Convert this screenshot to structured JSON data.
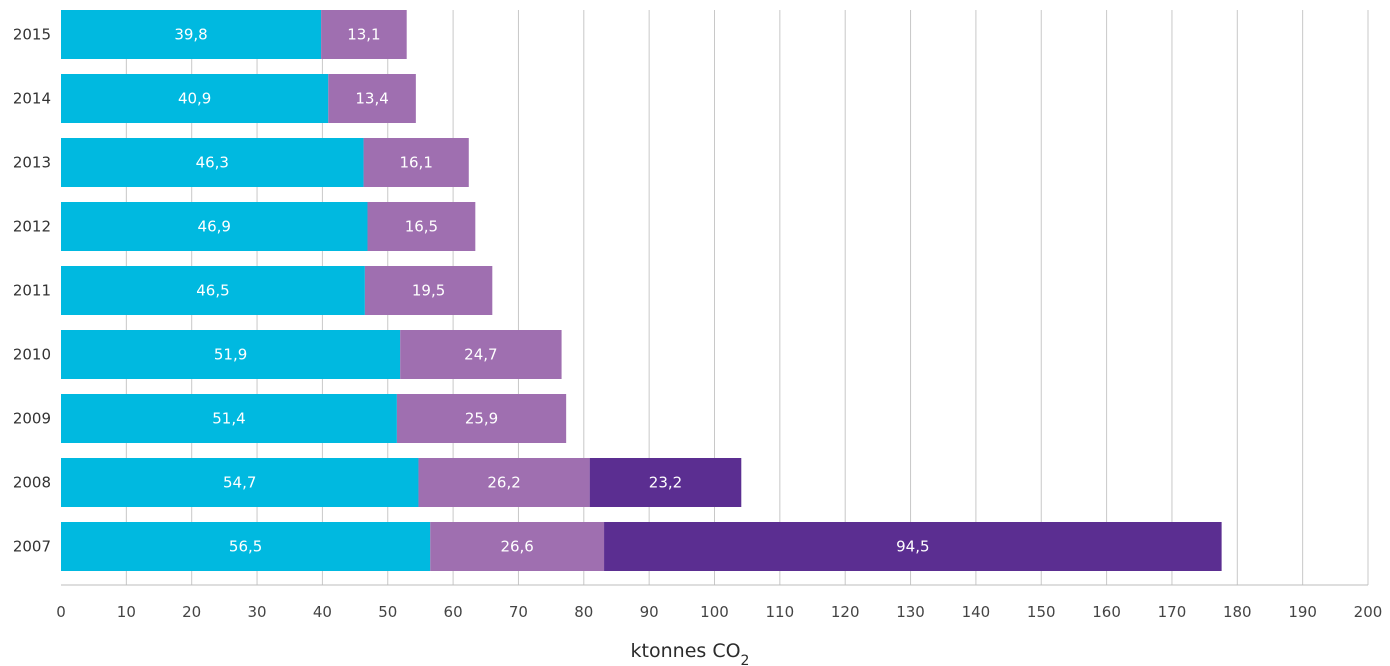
{
  "chart_data": {
    "type": "bar",
    "orientation": "horizontal",
    "stacked": true,
    "categories": [
      "2015",
      "2014",
      "2013",
      "2012",
      "2011",
      "2010",
      "2009",
      "2008",
      "2007"
    ],
    "series": [
      {
        "values": [
          39.8,
          40.9,
          46.3,
          46.9,
          46.5,
          51.9,
          51.4,
          54.7,
          56.5
        ],
        "labels": [
          "39,8",
          "40,9",
          "46,3",
          "46,9",
          "46,5",
          "51,9",
          "51,4",
          "54,7",
          "56,5"
        ],
        "color": "#00b9e0"
      },
      {
        "values": [
          13.1,
          13.4,
          16.1,
          16.5,
          19.5,
          24.7,
          25.9,
          26.2,
          26.6
        ],
        "labels": [
          "13,1",
          "13,4",
          "16,1",
          "16,5",
          "19,5",
          "24,7",
          "25,9",
          "26,2",
          "26,6"
        ],
        "color": "#9f6fb0"
      },
      {
        "values": [
          0,
          0,
          0,
          0,
          0,
          0,
          0,
          23.2,
          94.5
        ],
        "labels": [
          "",
          "",
          "",
          "",
          "",
          "",
          "",
          "23,2",
          "94,5"
        ],
        "color": "#5b2e91"
      }
    ],
    "xticks": [
      "0",
      "10",
      "20",
      "30",
      "40",
      "50",
      "60",
      "70",
      "80",
      "90",
      "100",
      "110",
      "120",
      "130",
      "140",
      "150",
      "160",
      "170",
      "180",
      "190",
      "200"
    ],
    "xlim": [
      0,
      200
    ],
    "xlabel": "ktonnes CO",
    "xlabel_subscript": "2",
    "grid": "vertical",
    "legend": "none"
  }
}
